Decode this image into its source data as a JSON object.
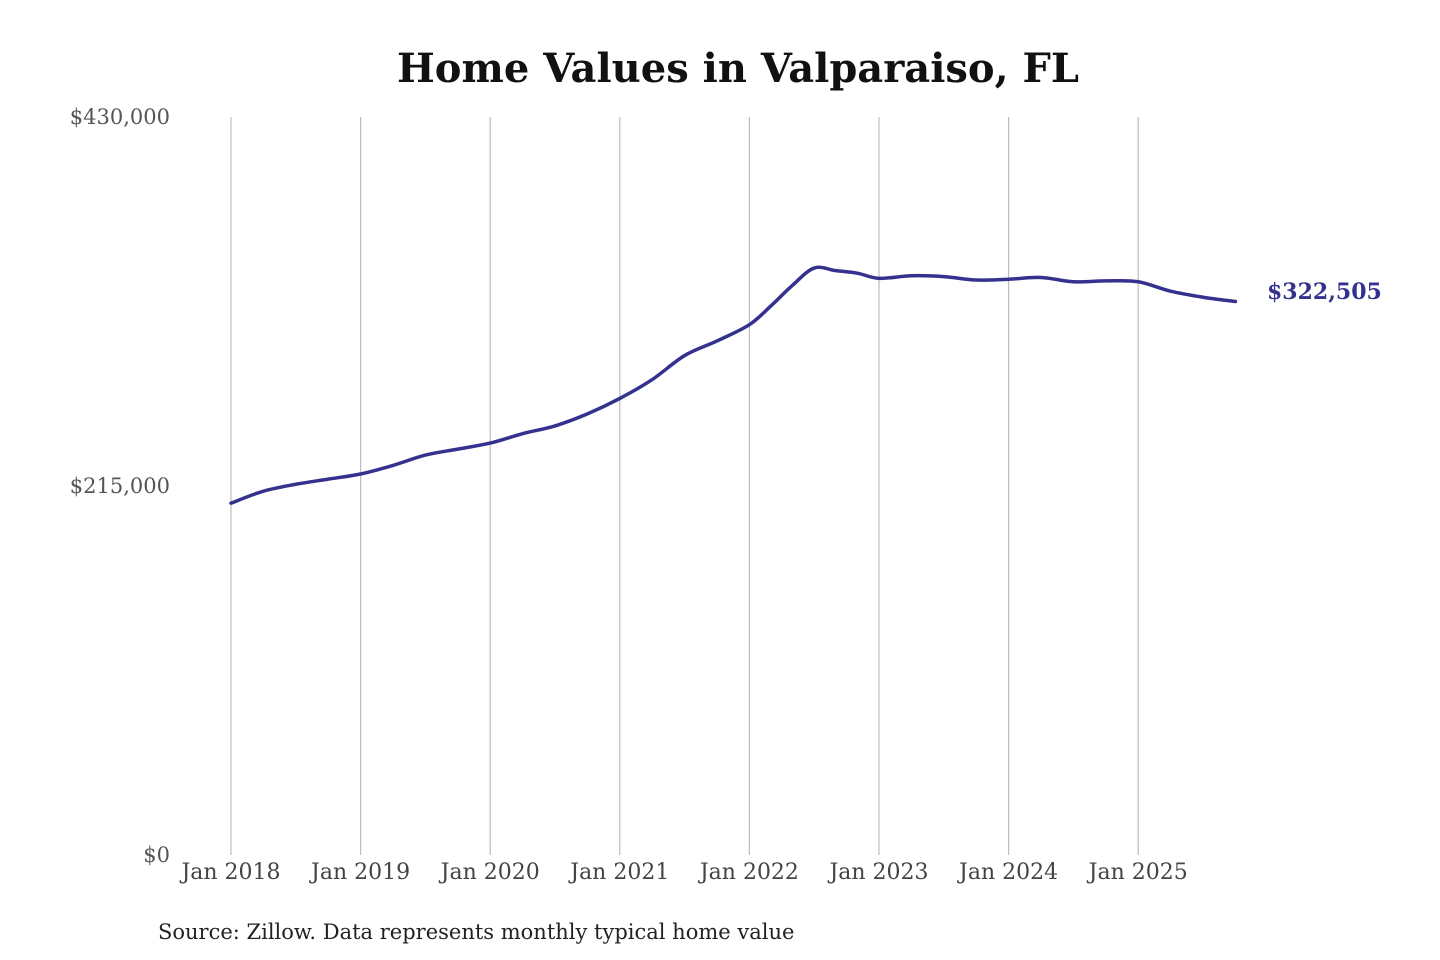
{
  "chart_data": {
    "type": "line",
    "title": "Home Values in Valparaiso, FL",
    "xlabel": "",
    "ylabel": "",
    "ylim": [
      0,
      430000
    ],
    "y_ticks": [
      {
        "value": 0,
        "label": "$0"
      },
      {
        "value": 215000,
        "label": "$215,000"
      },
      {
        "value": 430000,
        "label": "$430,000"
      }
    ],
    "x_ticks": [
      {
        "value": "2018-01",
        "label": "Jan 2018"
      },
      {
        "value": "2019-01",
        "label": "Jan 2019"
      },
      {
        "value": "2020-01",
        "label": "Jan 2020"
      },
      {
        "value": "2021-01",
        "label": "Jan 2021"
      },
      {
        "value": "2022-01",
        "label": "Jan 2022"
      },
      {
        "value": "2023-01",
        "label": "Jan 2023"
      },
      {
        "value": "2024-01",
        "label": "Jan 2024"
      },
      {
        "value": "2025-01",
        "label": "Jan 2025"
      }
    ],
    "grid": "vertical",
    "legend": "none",
    "line_color": "#34318f",
    "end_label": "$322,505",
    "series": [
      {
        "x": [
          "2018-01",
          "2018-04",
          "2018-07",
          "2018-10",
          "2019-01",
          "2019-04",
          "2019-07",
          "2019-10",
          "2020-01",
          "2020-04",
          "2020-07",
          "2020-10",
          "2021-01",
          "2021-04",
          "2021-07",
          "2021-10",
          "2022-01",
          "2022-03",
          "2022-05",
          "2022-07",
          "2022-09",
          "2022-11",
          "2023-01",
          "2023-04",
          "2023-07",
          "2023-10",
          "2024-01",
          "2024-04",
          "2024-07",
          "2024-10",
          "2025-01",
          "2025-04",
          "2025-07",
          "2025-10"
        ],
        "values": [
          205000,
          212000,
          216000,
          219000,
          222000,
          227000,
          233000,
          236500,
          240000,
          245500,
          250000,
          257000,
          266000,
          277000,
          291000,
          299500,
          309000,
          320000,
          332000,
          342000,
          340500,
          339000,
          336000,
          337500,
          337000,
          335000,
          335500,
          336500,
          334000,
          334500,
          334000,
          328500,
          325000,
          322505
        ]
      }
    ]
  },
  "footer": {
    "source": "Source: Zillow. Data represents monthly typical home value"
  }
}
